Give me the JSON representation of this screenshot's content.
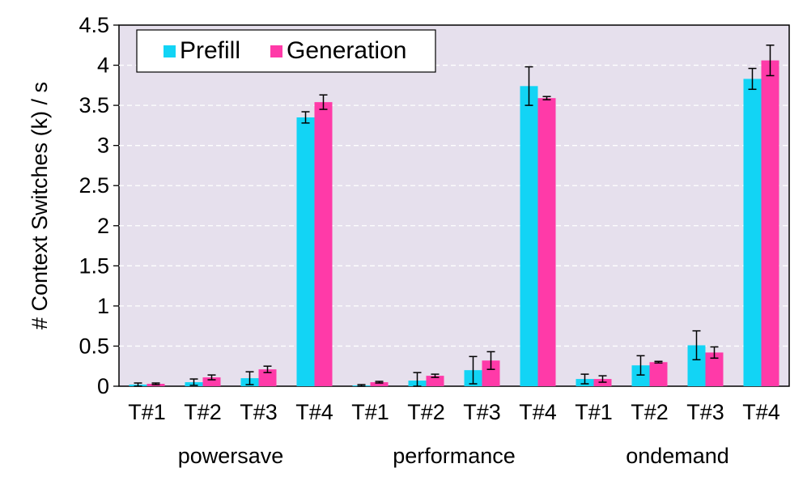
{
  "chart_data": {
    "type": "bar",
    "title": "",
    "xlabel": "",
    "ylabel": "# Context Switches (k) / s",
    "ylim": [
      0,
      4.5
    ],
    "yticks": [
      "0",
      "0.5",
      "1",
      "1.5",
      "2",
      "2.5",
      "3",
      "3.5",
      "4",
      "4.5"
    ],
    "grid": "horizontal dashed",
    "legend_position": "top-left",
    "categories": [
      "T#1",
      "T#2",
      "T#3",
      "T#4",
      "T#1",
      "T#2",
      "T#3",
      "T#4",
      "T#1",
      "T#2",
      "T#3",
      "T#4"
    ],
    "groups": [
      "powersave",
      "performance",
      "ondemand"
    ],
    "series": [
      {
        "name": "Prefill",
        "color": "#12d4f5",
        "values": [
          0.02,
          0.05,
          0.1,
          3.35,
          0.01,
          0.07,
          0.2,
          3.74,
          0.09,
          0.26,
          0.51,
          3.83
        ],
        "errors": [
          0.02,
          0.04,
          0.08,
          0.07,
          0.01,
          0.1,
          0.17,
          0.24,
          0.06,
          0.12,
          0.18,
          0.13
        ]
      },
      {
        "name": "Generation",
        "color": "#ff3aa8",
        "values": [
          0.03,
          0.11,
          0.21,
          3.54,
          0.05,
          0.13,
          0.32,
          3.59,
          0.09,
          0.3,
          0.42,
          4.06
        ],
        "errors": [
          0.01,
          0.03,
          0.04,
          0.09,
          0.01,
          0.02,
          0.11,
          0.02,
          0.04,
          0.01,
          0.07,
          0.19
        ]
      }
    ]
  }
}
